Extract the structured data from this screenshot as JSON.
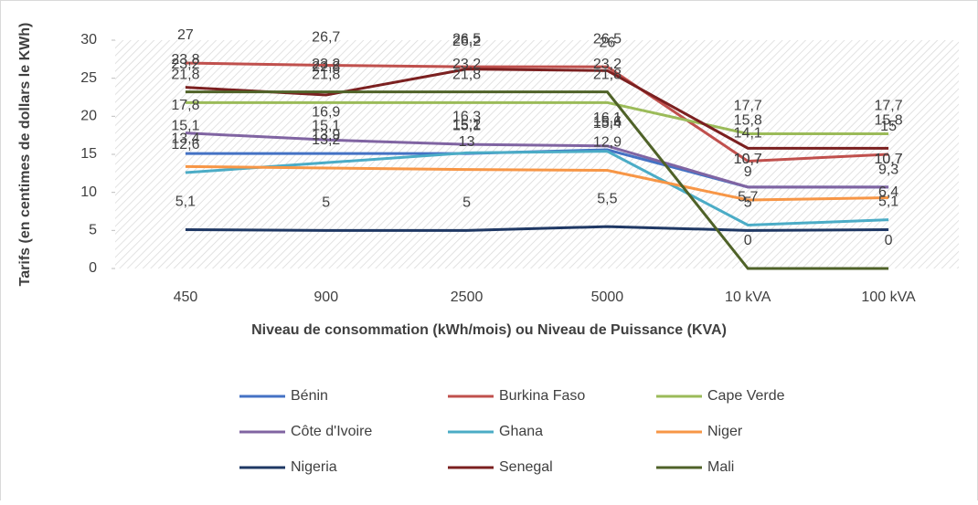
{
  "chart_data": {
    "type": "line",
    "xlabel": "Niveau de consommation (kWh/mois) ou Niveau de Puissance (KVA)",
    "ylabel": "Tarifs (en centimes de dollars le KWh)",
    "categories": [
      "450",
      "900",
      "2500",
      "5000",
      "10 kVA",
      "100 kVA"
    ],
    "ylim": [
      0,
      30
    ],
    "yticks": [
      0,
      5,
      10,
      15,
      20,
      25,
      30
    ],
    "legend": "bottom",
    "series": [
      {
        "name": "Bénin",
        "color": "#4472c4",
        "values": [
          15.1,
          15.1,
          15.1,
          15.6,
          10.7,
          10.7
        ],
        "value_labels": [
          "15,1",
          "15,1",
          "15,1",
          "15,6",
          "10,7",
          "10,7"
        ]
      },
      {
        "name": "Burkina Faso",
        "color": "#c0504d",
        "values": [
          27,
          26.7,
          26.5,
          26.5,
          14.1,
          15
        ],
        "value_labels": [
          "27",
          "26,7",
          "26,5",
          "26,5",
          "14,1",
          "15"
        ]
      },
      {
        "name": "Cape Verde",
        "color": "#9bbb59",
        "values": [
          21.8,
          21.8,
          21.8,
          21.8,
          17.7,
          17.7
        ],
        "value_labels": [
          "21,8",
          "21,8",
          "21,8",
          "21,8",
          "17,7",
          "17,7"
        ]
      },
      {
        "name": "Côte d'Ivoire",
        "color": "#8064a2",
        "values": [
          17.8,
          16.9,
          16.3,
          16.1,
          10.7,
          10.7
        ],
        "value_labels": [
          "17,8",
          "16,9",
          "16,3",
          "16,1",
          "10,7",
          "10,7"
        ]
      },
      {
        "name": "Ghana",
        "color": "#4bacc6",
        "values": [
          12.6,
          13.9,
          15.2,
          15.4,
          5.7,
          6.4
        ],
        "value_labels": [
          "12,6",
          "13,9",
          "15,2",
          "15,4",
          "5,7",
          "6,4"
        ]
      },
      {
        "name": "Niger",
        "color": "#f79646",
        "values": [
          13.4,
          13.2,
          13,
          12.9,
          9,
          9.3
        ],
        "value_labels": [
          "13,4",
          "13,2",
          "13",
          "12,9",
          "9",
          "9,3"
        ]
      },
      {
        "name": "Nigeria",
        "color": "#1f3864",
        "values": [
          5.1,
          5,
          5,
          5.5,
          5,
          5.1
        ],
        "value_labels": [
          "5,1",
          "5",
          "5",
          "5,5",
          "5",
          "5,1"
        ]
      },
      {
        "name": "Senegal",
        "color": "#7b2020",
        "values": [
          23.8,
          22.8,
          26.2,
          26,
          15.8,
          15.8
        ],
        "value_labels": [
          "23,8",
          "22,8",
          "26,2",
          "26",
          "15,8",
          "15,8"
        ]
      },
      {
        "name": "Mali",
        "color": "#4f6228",
        "values": [
          23.2,
          23.2,
          23.2,
          23.2,
          0,
          0
        ],
        "value_labels": [
          "23,2",
          "23,2",
          "23,2",
          "23,2",
          "0",
          "0"
        ]
      }
    ]
  }
}
